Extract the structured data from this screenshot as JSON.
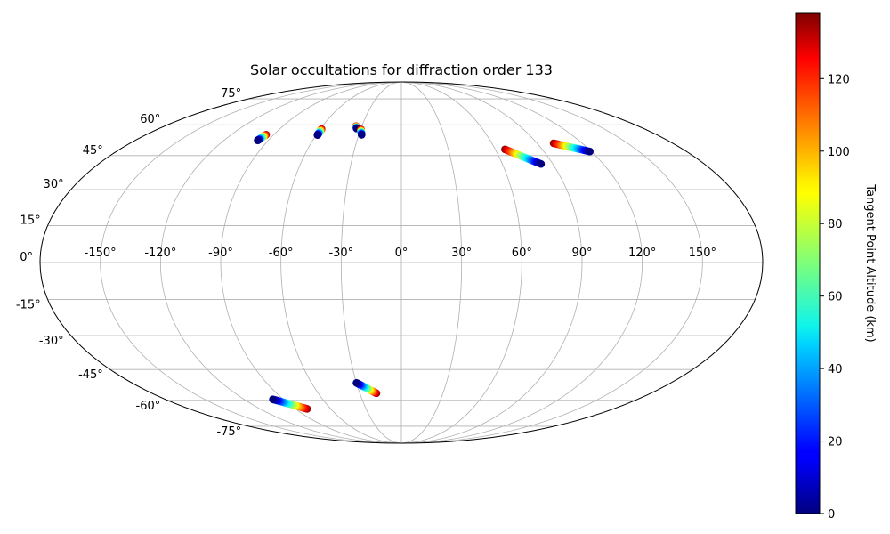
{
  "chart_data": {
    "type": "scatter",
    "projection": "mollweide",
    "title": "Solar occultations for diffraction order 133",
    "grid": true,
    "lon_ticks": [
      "-150°",
      "-120°",
      "-90°",
      "-60°",
      "-30°",
      "0°",
      "30°",
      "60°",
      "90°",
      "120°",
      "150°"
    ],
    "lat_ticks_left": [
      "75°",
      "60°",
      "45°",
      "30°",
      "15°",
      "0°",
      "-15°",
      "-30°",
      "-45°",
      "-60°",
      "-75°"
    ],
    "colorbar": {
      "label": "Tangent Point Altitude (km)",
      "colormap": "jet",
      "range": [
        0,
        138
      ],
      "ticks": [
        "0",
        "20",
        "40",
        "60",
        "80",
        "100",
        "120"
      ]
    },
    "series": [
      {
        "points": [
          [
            -97.2,
            52.2,
            0
          ],
          [
            -96.6,
            53.1,
            45
          ],
          [
            -96.0,
            54.1,
            90
          ],
          [
            -95.4,
            55.0,
            135
          ]
        ]
      },
      {
        "points": [
          [
            -59.0,
            54.8,
            0
          ],
          [
            -59.0,
            55.8,
            45
          ],
          [
            -59.0,
            56.8,
            90
          ],
          [
            -59.0,
            57.8,
            135
          ]
        ]
      },
      {
        "points": [
          [
            -33.2,
            58.1,
            0
          ],
          [
            -33.6,
            58.5,
            45
          ],
          [
            -34.0,
            58.9,
            90
          ],
          [
            -34.4,
            59.3,
            135
          ]
        ]
      },
      {
        "points": [
          [
            -28.0,
            54.9,
            0
          ],
          [
            -28.6,
            55.8,
            45
          ],
          [
            -29.2,
            56.7,
            90
          ],
          [
            -29.8,
            57.6,
            135
          ]
        ]
      },
      {
        "points": [
          [
            83.0,
            41.2,
            0
          ],
          [
            77.4,
            43.4,
            45
          ],
          [
            71.8,
            45.7,
            90
          ],
          [
            66.2,
            47.9,
            135
          ]
        ]
      },
      {
        "points": [
          [
            119.0,
            46.9,
            0
          ],
          [
            113.0,
            48.2,
            45
          ],
          [
            107.0,
            49.5,
            90
          ],
          [
            101.0,
            50.8,
            135
          ]
        ]
      },
      {
        "points": [
          [
            -98.0,
            -59.5,
            0
          ],
          [
            -92.0,
            -61.2,
            45
          ],
          [
            -86.0,
            -62.9,
            90
          ],
          [
            -80.0,
            -64.6,
            135
          ]
        ]
      },
      {
        "points": [
          [
            -30.0,
            -51.3,
            0
          ],
          [
            -26.0,
            -53.0,
            45
          ],
          [
            -22.0,
            -54.7,
            90
          ],
          [
            -18.0,
            -56.4,
            135
          ]
        ]
      }
    ]
  }
}
